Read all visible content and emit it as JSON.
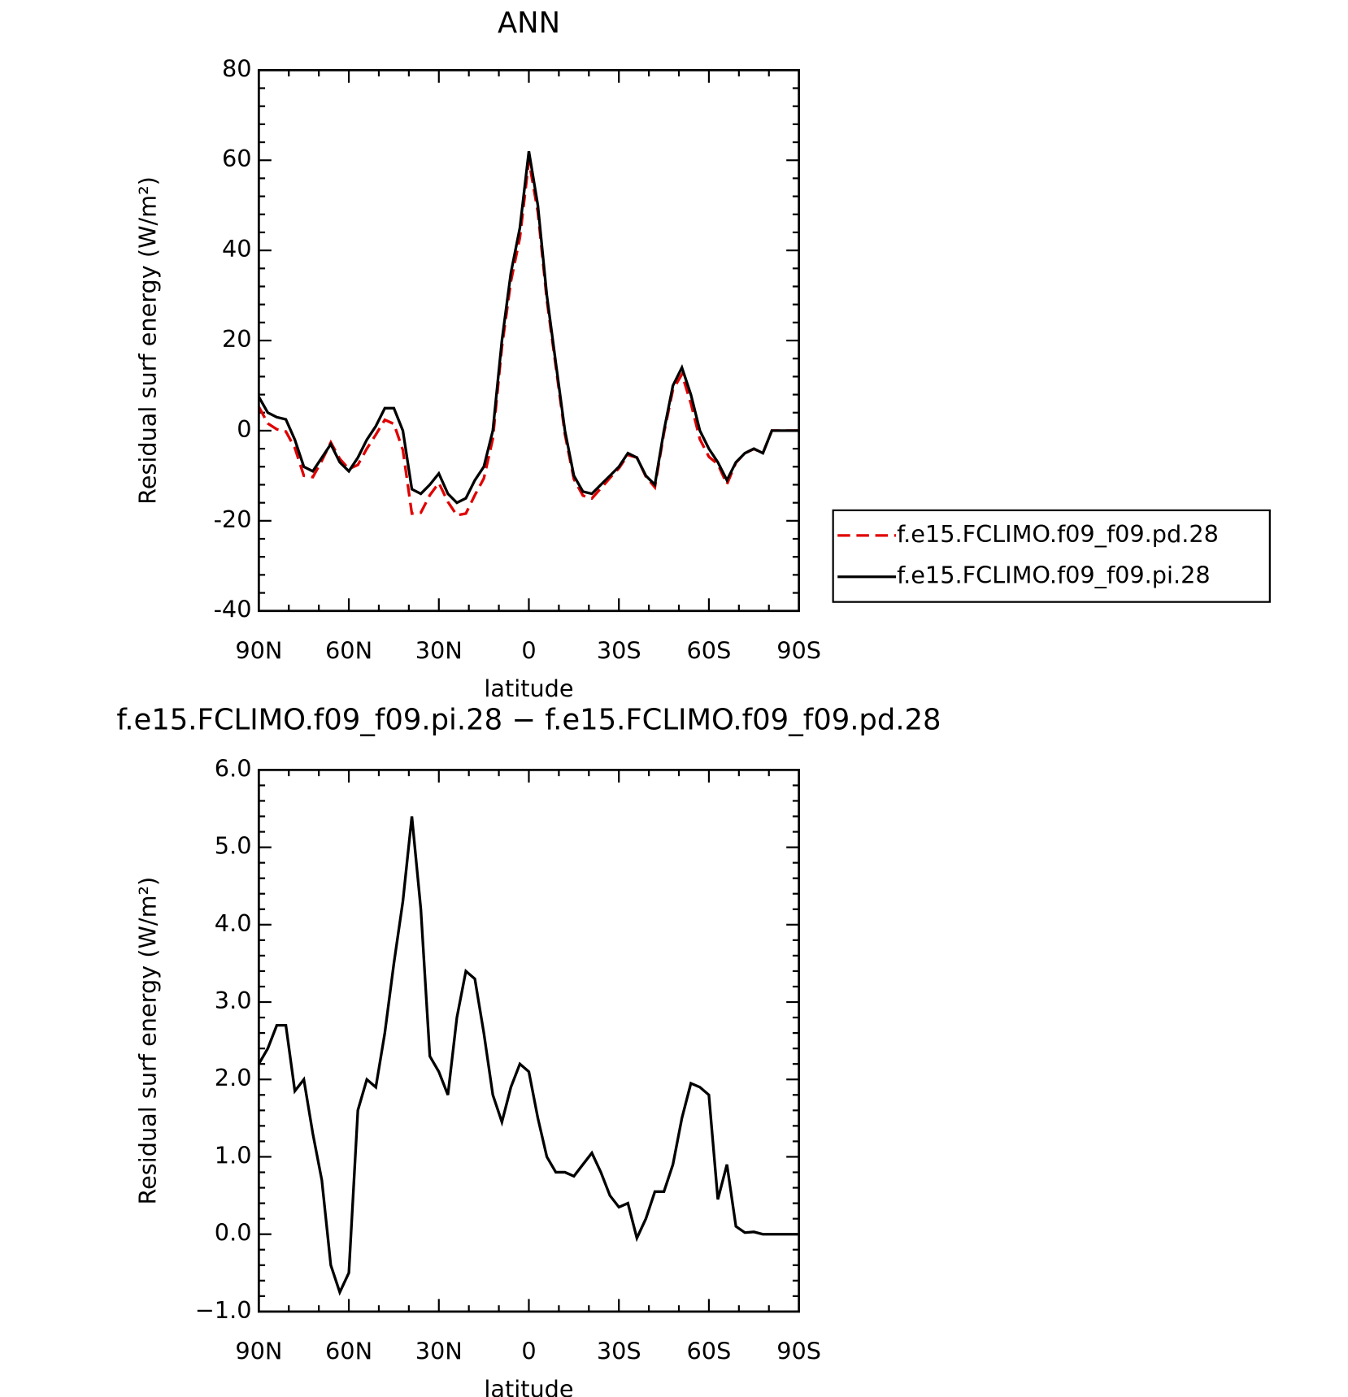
{
  "chart_data": [
    {
      "type": "line",
      "title": "ANN",
      "xlabel": "latitude",
      "ylabel": "Residual surf energy (W/m²)",
      "x": [
        90,
        87,
        84,
        81,
        78,
        75,
        72,
        69,
        66,
        63,
        60,
        57,
        54,
        51,
        48,
        45,
        42,
        39,
        36,
        33,
        30,
        27,
        24,
        21,
        18,
        15,
        12,
        9,
        6,
        3,
        0,
        -3,
        -6,
        -9,
        -12,
        -15,
        -18,
        -21,
        -24,
        -27,
        -30,
        -33,
        -36,
        -39,
        -42,
        -45,
        -48,
        -51,
        -54,
        -57,
        -60,
        -63,
        -66,
        -69,
        -72,
        -75,
        -78,
        -81,
        -84,
        -87,
        -90
      ],
      "xlim": [
        90,
        -90
      ],
      "xticks": [
        {
          "value": 90,
          "label": "90N"
        },
        {
          "value": 60,
          "label": "60N"
        },
        {
          "value": 30,
          "label": "30N"
        },
        0,
        {
          "value": -30,
          "label": "30S"
        },
        {
          "value": -60,
          "label": "60S"
        },
        {
          "value": -90,
          "label": "90S"
        }
      ],
      "ylim": [
        -40,
        80
      ],
      "yticks": [
        -40,
        -20,
        0,
        20,
        40,
        60,
        80
      ],
      "legend": "right",
      "series": [
        {
          "name": "f.e15.FCLIMO.f09_f09.pd.28",
          "color": "#e00000",
          "dashed": true,
          "values": [
            5.3,
            1.6,
            0.3,
            -0.2,
            -3.85,
            -10,
            -10.3,
            -6.7,
            -2.6,
            -6.25,
            -8.5,
            -7.6,
            -4,
            -0.9,
            2.4,
            1.5,
            -4.3,
            -18.4,
            -18.2,
            -14.3,
            -11.6,
            -15.8,
            -18.8,
            -18.4,
            -14.3,
            -10.6,
            -1.8,
            18.55,
            33.1,
            42.8,
            59.9,
            48.5,
            29,
            14.2,
            -0.8,
            -10.75,
            -14.4,
            -15.05,
            -12.8,
            -10.5,
            -8.35,
            -5.4,
            -5.95,
            -10.2,
            -12.55,
            -0.55,
            9.1,
            12.5,
            6.05,
            -1.9,
            -5.8,
            -7.45,
            -11.9,
            -7.1,
            -5.02,
            -4.03,
            -5,
            0,
            0,
            0,
            0
          ]
        },
        {
          "name": "f.e15.FCLIMO.f09_f09.pi.28",
          "color": "#000000",
          "dashed": false,
          "values": [
            7.5,
            4,
            3,
            2.5,
            -2,
            -8,
            -9,
            -6,
            -3,
            -7,
            -9,
            -6,
            -2,
            1,
            5,
            5,
            0,
            -13,
            -14,
            -12,
            -9.5,
            -14,
            -16,
            -15,
            -11,
            -8,
            0,
            20,
            35,
            45,
            62,
            50,
            30,
            15,
            0,
            -10,
            -13.5,
            -14,
            -12,
            -10,
            -8,
            -5,
            -6,
            -10,
            -12,
            0,
            10,
            14,
            8,
            0,
            -4,
            -7,
            -11,
            -7,
            -5,
            -4,
            -5,
            0,
            0,
            0,
            0
          ]
        }
      ]
    },
    {
      "type": "line",
      "title": "f.e15.FCLIMO.f09_f09.pi.28 − f.e15.FCLIMO.f09_f09.pd.28",
      "xlabel": "latitude",
      "ylabel": "Residual surf energy (W/m²)",
      "x": [
        90,
        87,
        84,
        81,
        78,
        75,
        72,
        69,
        66,
        63,
        60,
        57,
        54,
        51,
        48,
        45,
        42,
        39,
        36,
        33,
        30,
        27,
        24,
        21,
        18,
        15,
        12,
        9,
        6,
        3,
        0,
        -3,
        -6,
        -9,
        -12,
        -15,
        -18,
        -21,
        -24,
        -27,
        -30,
        -33,
        -36,
        -39,
        -42,
        -45,
        -48,
        -51,
        -54,
        -57,
        -60,
        -63,
        -66,
        -69,
        -72,
        -75,
        -78,
        -81,
        -84,
        -87,
        -90
      ],
      "xlim": [
        90,
        -90
      ],
      "xticks": [
        {
          "value": 90,
          "label": "90N"
        },
        {
          "value": 60,
          "label": "60N"
        },
        {
          "value": 30,
          "label": "30N"
        },
        0,
        {
          "value": -30,
          "label": "30S"
        },
        {
          "value": -60,
          "label": "60S"
        },
        {
          "value": -90,
          "label": "90S"
        }
      ],
      "ylim": [
        -1,
        6
      ],
      "yticks": [
        {
          "value": -1,
          "label": "−1.0"
        },
        {
          "value": 0,
          "label": "0.0"
        },
        {
          "value": 1,
          "label": "1.0"
        },
        {
          "value": 2,
          "label": "2.0"
        },
        {
          "value": 3,
          "label": "3.0"
        },
        {
          "value": 4,
          "label": "4.0"
        },
        {
          "value": 5,
          "label": "5.0"
        },
        {
          "value": 6,
          "label": "6.0"
        }
      ],
      "series": [
        {
          "color": "#000000",
          "dashed": false,
          "values": [
            2.2,
            2.4,
            2.7,
            2.7,
            1.85,
            2.0,
            1.3,
            0.7,
            -0.4,
            -0.75,
            -0.5,
            1.6,
            2.0,
            1.9,
            2.6,
            3.5,
            4.3,
            5.4,
            4.2,
            2.3,
            2.1,
            1.8,
            2.8,
            3.4,
            3.3,
            2.6,
            1.8,
            1.45,
            1.9,
            2.2,
            2.1,
            1.5,
            1.0,
            0.8,
            0.8,
            0.75,
            0.9,
            1.05,
            0.8,
            0.5,
            0.35,
            0.4,
            -0.05,
            0.2,
            0.55,
            0.55,
            0.9,
            1.5,
            1.95,
            1.9,
            1.8,
            0.45,
            0.9,
            0.1,
            0.02,
            0.03,
            0,
            0,
            0,
            0,
            0
          ]
        }
      ]
    }
  ]
}
